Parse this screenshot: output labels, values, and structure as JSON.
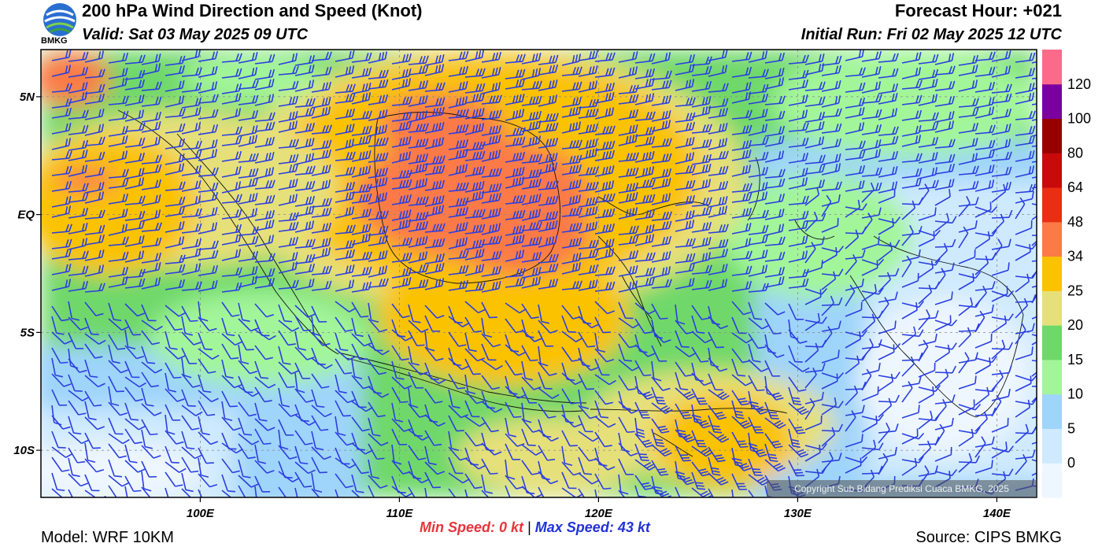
{
  "header": {
    "title": "200 hPa Wind Direction and Speed (Knot)",
    "valid": "Valid: Sat 03 May 2025 09 UTC",
    "forecast_hour": "Forecast Hour: +021",
    "initial_run": "Initial Run: Fri 02 May 2025 12 UTC"
  },
  "logo": {
    "text": "BMKG",
    "icon": "bmkg-logo-icon"
  },
  "map": {
    "lon_range": [
      92,
      142
    ],
    "lat_range": [
      -12,
      7
    ],
    "lat_ticks": [
      {
        "value": 5,
        "label": "5N"
      },
      {
        "value": 0,
        "label": "EQ"
      },
      {
        "value": -5,
        "label": "5S"
      },
      {
        "value": -10,
        "label": "10S"
      }
    ],
    "lon_ticks": [
      {
        "value": 100,
        "label": "100E"
      },
      {
        "value": 110,
        "label": "110E"
      },
      {
        "value": 120,
        "label": "120E"
      },
      {
        "value": 130,
        "label": "130E"
      },
      {
        "value": 140,
        "label": "140E"
      }
    ],
    "barb_color": "#2b3fe0",
    "grid": true
  },
  "colorbar": {
    "labels": [
      "0",
      "5",
      "10",
      "15",
      "20",
      "25",
      "34",
      "48",
      "64",
      "80",
      "100",
      "120"
    ],
    "colors": [
      "#eef6ff",
      "#cfeaff",
      "#9fd4fb",
      "#a3f59a",
      "#6fd86a",
      "#e6e07a",
      "#fbc200",
      "#fb7a46",
      "#ea2e14",
      "#c80a0a",
      "#980000",
      "#7a00a0",
      "#fb6a8a"
    ]
  },
  "stats": {
    "min_label": "Min Speed:",
    "min_value": "0 kt",
    "separator": "|",
    "max_label": "Max Speed:",
    "max_value": "43 kt"
  },
  "footer": {
    "model": "Model: WRF 10KM",
    "source": "Source: CIPS BMKG",
    "copyright": "Copyright Sub Bidang Prediksi Cuaca BMKG, 2025"
  }
}
